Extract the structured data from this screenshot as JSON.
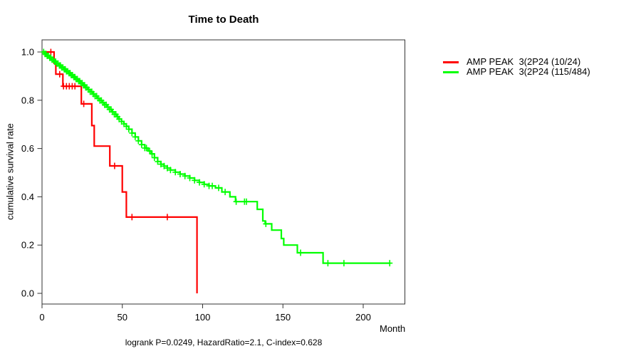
{
  "title": "Time to Death",
  "subtitle": "logrank P=0.0249, HazardRatio=2.1, C-index=0.628",
  "x_axis_label": "Month",
  "y_axis_label": "cumulative survival rate",
  "legend": {
    "items": [
      {
        "label": "AMP PEAK  3(2P24 (10/24)",
        "color": "#FF0000"
      },
      {
        "label": "AMP PEAK  3(2P24 (115/484)",
        "color": "#00FF00"
      }
    ]
  },
  "chart_data": {
    "type": "line",
    "subtype": "kaplan-meier-step",
    "title": "Time to Death",
    "xlabel": "Month",
    "ylabel": "cumulative survival rate",
    "annotation": "logrank P=0.0249, HazardRatio=2.1, C-index=0.628",
    "xlim": [
      0,
      225
    ],
    "ylim": [
      0,
      1.0
    ],
    "grid": false,
    "legend_position": "right-outside",
    "x_ticks": {
      "values": [
        0,
        50,
        100,
        150,
        200
      ],
      "labels": [
        "0",
        "50",
        "100",
        "150",
        "200"
      ]
    },
    "y_ticks": {
      "values": [
        0.0,
        0.2,
        0.4,
        0.6,
        0.8,
        1.0
      ],
      "labels": [
        "0.0",
        "0.2",
        "0.4",
        "0.6",
        "0.8",
        "1.0"
      ]
    },
    "series": [
      {
        "name": "AMP PEAK  3(2P24 (10/24)",
        "color": "#FF0000",
        "points": [
          [
            0,
            1.0
          ],
          [
            7.5,
            0.953
          ],
          [
            8.6,
            0.908
          ],
          [
            13,
            0.858
          ],
          [
            24.5,
            0.785
          ],
          [
            31,
            0.695
          ],
          [
            32.5,
            0.61
          ],
          [
            42.2,
            0.528
          ],
          [
            50,
            0.42
          ],
          [
            52.5,
            0.316
          ],
          [
            96.5,
            0.0
          ]
        ],
        "censor_t": [
          5.5,
          11,
          13.4,
          15.2,
          17,
          18.8,
          20.5,
          26,
          45.2,
          56,
          78
        ]
      },
      {
        "name": "AMP PEAK  3(2P24 (115/484)",
        "color": "#00FF00",
        "points": [
          [
            0,
            1.0
          ],
          [
            1.5,
            0.992
          ],
          [
            3,
            0.984
          ],
          [
            4.5,
            0.976
          ],
          [
            6,
            0.968
          ],
          [
            7.5,
            0.96
          ],
          [
            9,
            0.952
          ],
          [
            10.5,
            0.944
          ],
          [
            12,
            0.936
          ],
          [
            13.5,
            0.928
          ],
          [
            15,
            0.92
          ],
          [
            16.5,
            0.912
          ],
          [
            18,
            0.904
          ],
          [
            19.5,
            0.896
          ],
          [
            21,
            0.888
          ],
          [
            22.5,
            0.879
          ],
          [
            24,
            0.871
          ],
          [
            25.5,
            0.862
          ],
          [
            27,
            0.853
          ],
          [
            28.5,
            0.844
          ],
          [
            30,
            0.835
          ],
          [
            31.5,
            0.826
          ],
          [
            33,
            0.817
          ],
          [
            34.5,
            0.808
          ],
          [
            36,
            0.799
          ],
          [
            37.5,
            0.79
          ],
          [
            39,
            0.781
          ],
          [
            40.5,
            0.772
          ],
          [
            42,
            0.762
          ],
          [
            43.5,
            0.752
          ],
          [
            45,
            0.742
          ],
          [
            46.5,
            0.732
          ],
          [
            48,
            0.722
          ],
          [
            49.5,
            0.712
          ],
          [
            51,
            0.702
          ],
          [
            52.5,
            0.692
          ],
          [
            54,
            0.68
          ],
          [
            56,
            0.664
          ],
          [
            58,
            0.648
          ],
          [
            60,
            0.632
          ],
          [
            62,
            0.616
          ],
          [
            64,
            0.602
          ],
          [
            66,
            0.59
          ],
          [
            68,
            0.578
          ],
          [
            70,
            0.562
          ],
          [
            72,
            0.546
          ],
          [
            74,
            0.535
          ],
          [
            76,
            0.527
          ],
          [
            78,
            0.519
          ],
          [
            80,
            0.511
          ],
          [
            83,
            0.502
          ],
          [
            86,
            0.494
          ],
          [
            89,
            0.486
          ],
          [
            92,
            0.478
          ],
          [
            95,
            0.468
          ],
          [
            98,
            0.46
          ],
          [
            101,
            0.452
          ],
          [
            104,
            0.445
          ],
          [
            108,
            0.437
          ],
          [
            112,
            0.42
          ],
          [
            117,
            0.4
          ],
          [
            120.5,
            0.38
          ],
          [
            134,
            0.348
          ],
          [
            137.5,
            0.3
          ],
          [
            139,
            0.288
          ],
          [
            143,
            0.262
          ],
          [
            149,
            0.227
          ],
          [
            150.5,
            0.2
          ],
          [
            159,
            0.168
          ],
          [
            175,
            0.125
          ],
          [
            217,
            0.125
          ]
        ],
        "censor_t": [
          1,
          1.8,
          2.5,
          3.2,
          4,
          4.8,
          5.5,
          6.2,
          7,
          7.8,
          8.5,
          9.2,
          10,
          10.8,
          11.5,
          12.2,
          13,
          13.8,
          14.5,
          15.2,
          16,
          16.8,
          17.5,
          18.2,
          19,
          19.8,
          20.5,
          21.2,
          22,
          22.8,
          23.5,
          24.2,
          25,
          25.8,
          26.5,
          27.2,
          28,
          29,
          30,
          31,
          32,
          33,
          34,
          35,
          36,
          37,
          38,
          39,
          40,
          41,
          42,
          43,
          44,
          45,
          46,
          47,
          48,
          49.5,
          51,
          52.5,
          54,
          56,
          58,
          60,
          62,
          64,
          65,
          67,
          68.5,
          70,
          72,
          74,
          76,
          78,
          80,
          83,
          86,
          89,
          92,
          95,
          98,
          101,
          104,
          106,
          110,
          114,
          120.9,
          126.1,
          127.3,
          139.4,
          161,
          178,
          188,
          216.5
        ]
      }
    ]
  }
}
